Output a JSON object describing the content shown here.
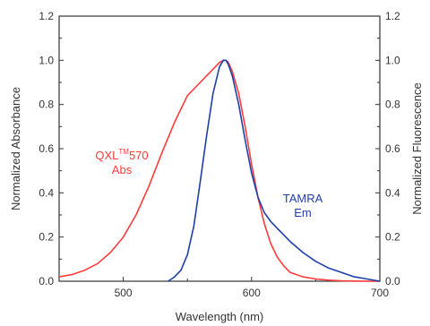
{
  "chart_data": {
    "type": "line",
    "title": "",
    "xlabel": "Wavelength (nm)",
    "ylabel_left": "Normalized Absorbance",
    "ylabel_right": "Normalized Fluorescence",
    "xlim": [
      450,
      700
    ],
    "ylim": [
      0,
      1.2
    ],
    "x_ticks": [
      500,
      600,
      700
    ],
    "x_tick_labels": [
      "500",
      "600",
      "700"
    ],
    "y_ticks": [
      0,
      0.2,
      0.4,
      0.6,
      0.8,
      1.0,
      1.2
    ],
    "y_tick_labels": [
      "0.0",
      "0.2",
      "0.4",
      "0.6",
      "0.8",
      "1.0",
      "1.2"
    ],
    "grid": false,
    "series": [
      {
        "label_main": "QXL",
        "label_sup": "TM",
        "label_rest": "570",
        "label_line2": "Abs",
        "color": "#ff3b3b",
        "x": [
          450,
          460,
          470,
          480,
          490,
          500,
          510,
          520,
          530,
          540,
          550,
          560,
          565,
          570,
          575,
          578,
          580,
          582,
          585,
          590,
          595,
          600,
          605,
          610,
          615,
          620,
          625,
          630,
          640,
          650,
          660,
          670,
          680,
          690,
          700
        ],
        "y": [
          0.02,
          0.03,
          0.05,
          0.08,
          0.13,
          0.2,
          0.3,
          0.43,
          0.58,
          0.72,
          0.84,
          0.9,
          0.93,
          0.96,
          0.99,
          1.0,
          1.0,
          0.99,
          0.95,
          0.85,
          0.7,
          0.53,
          0.38,
          0.26,
          0.17,
          0.11,
          0.07,
          0.04,
          0.02,
          0.01,
          0.005,
          0.002,
          0.001,
          0.0,
          0.0
        ]
      },
      {
        "label_main": "TAMRA",
        "label_line2": "Em",
        "color": "#1f3fa8",
        "x": [
          535,
          540,
          545,
          550,
          555,
          560,
          565,
          570,
          575,
          578,
          580,
          582,
          585,
          590,
          595,
          600,
          605,
          610,
          615,
          620,
          625,
          630,
          640,
          650,
          660,
          670,
          680,
          690,
          700
        ],
        "y": [
          0.0,
          0.02,
          0.05,
          0.12,
          0.25,
          0.45,
          0.66,
          0.85,
          0.97,
          1.0,
          1.0,
          0.98,
          0.93,
          0.8,
          0.64,
          0.49,
          0.38,
          0.31,
          0.27,
          0.24,
          0.21,
          0.18,
          0.13,
          0.09,
          0.06,
          0.04,
          0.02,
          0.01,
          0.0
        ]
      }
    ]
  }
}
